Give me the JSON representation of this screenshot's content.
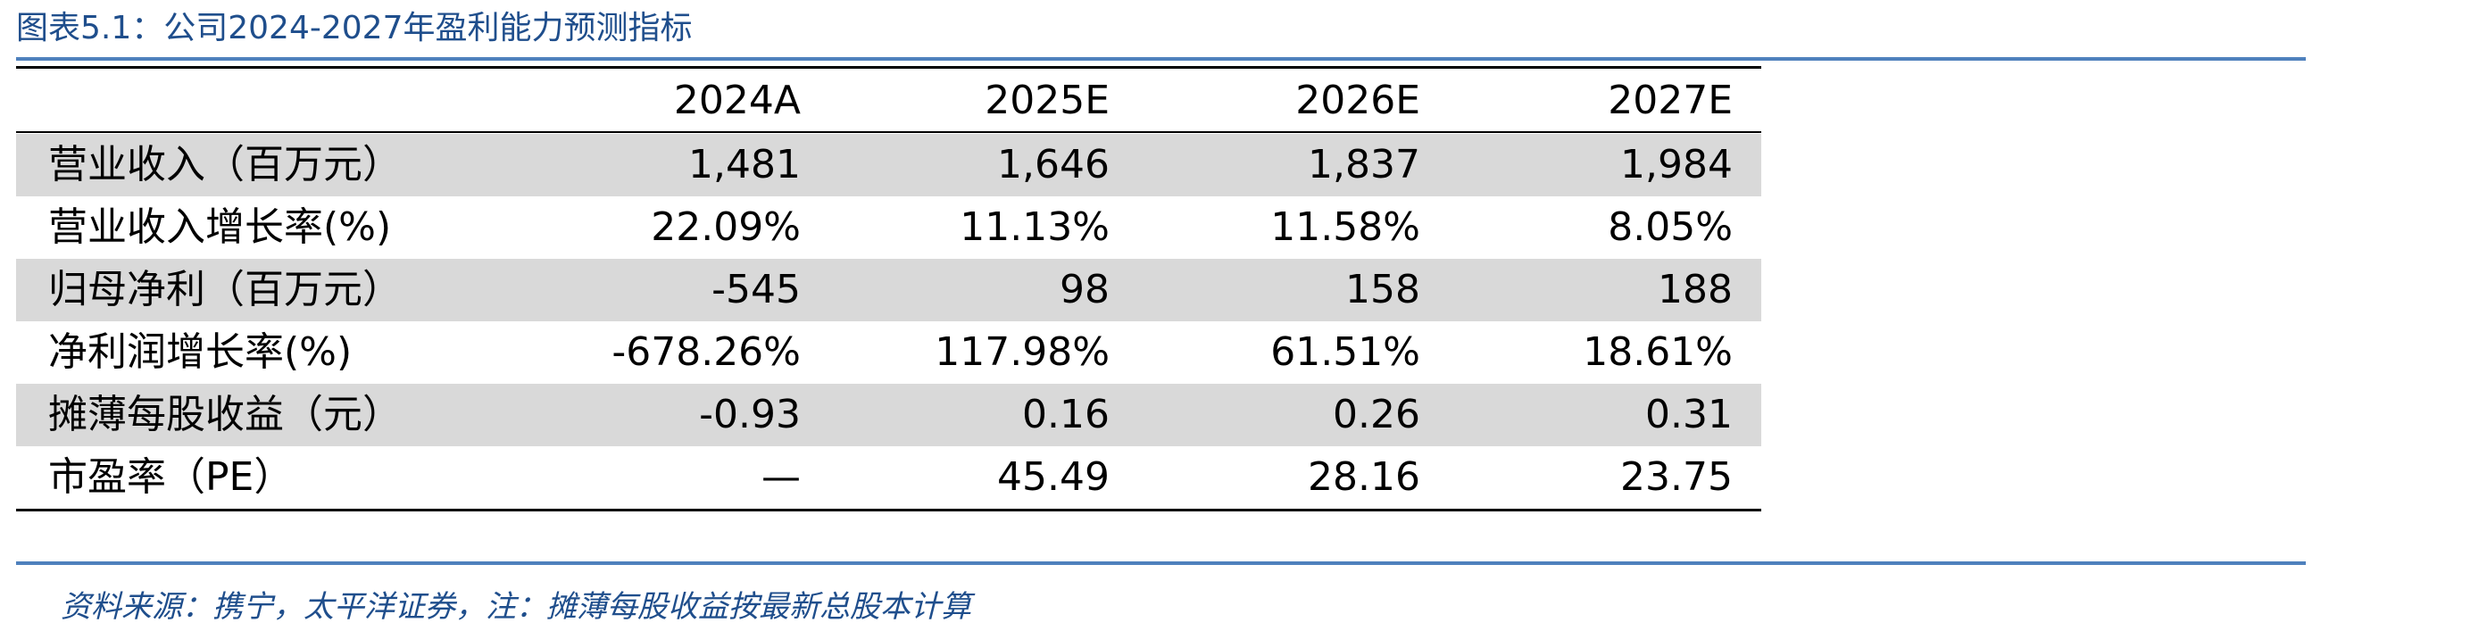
{
  "title": "图表5.1：公司2024-2027年盈利能力预测指标",
  "table": {
    "columns": [
      "2024A",
      "2025E",
      "2026E",
      "2027E"
    ],
    "rows": [
      {
        "label": "营业收入（百万元）",
        "cells": [
          "1,481",
          "1,646",
          "1,837",
          "1,984"
        ]
      },
      {
        "label": "营业收入增长率(%)",
        "cells": [
          "22.09%",
          "11.13%",
          "11.58%",
          "8.05%"
        ]
      },
      {
        "label": "归母净利（百万元）",
        "cells": [
          "-545",
          "98",
          "158",
          "188"
        ]
      },
      {
        "label": "净利润增长率(%)",
        "cells": [
          "-678.26%",
          "117.98%",
          "61.51%",
          "18.61%"
        ]
      },
      {
        "label": "摊薄每股收益（元）",
        "cells": [
          "-0.93",
          "0.16",
          "0.26",
          "0.31"
        ]
      },
      {
        "label": "市盈率（PE）",
        "cells": [
          "—",
          "45.49",
          "28.16",
          "23.75"
        ]
      }
    ]
  },
  "source": "资料来源：携宁，太平洋证券，注：摊薄每股收益按最新总股本计算"
}
